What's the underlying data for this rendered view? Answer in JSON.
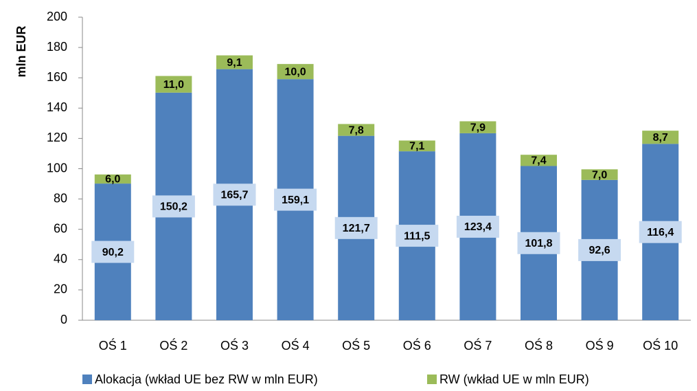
{
  "chart_data": {
    "type": "stacked_bar",
    "categories": [
      "OŚ 1",
      "OŚ 2",
      "OŚ 3",
      "OŚ 4",
      "OŚ 5",
      "OŚ 6",
      "OŚ 7",
      "OŚ 8",
      "OŚ 9",
      "OŚ 10"
    ],
    "series": [
      {
        "name": "Alokacja (wkład UE bez RW w mln EUR)",
        "color": "#4f81bd",
        "values": [
          90.2,
          150.2,
          165.7,
          159.1,
          121.7,
          111.5,
          123.4,
          101.8,
          92.6,
          116.4
        ],
        "value_labels": [
          "90,2",
          "150,2",
          "165,7",
          "159,1",
          "121,7",
          "111,5",
          "123,4",
          "101,8",
          "92,6",
          "116,4"
        ]
      },
      {
        "name": "RW (wkład UE w mln EUR)",
        "color": "#9bbb59",
        "values": [
          6.0,
          11.0,
          9.1,
          10.0,
          7.8,
          7.1,
          7.9,
          7.4,
          7.0,
          8.7
        ],
        "value_labels": [
          "6,0",
          "11,0",
          "9,1",
          "10,0",
          "7,8",
          "7,1",
          "7,9",
          "7,4",
          "7,0",
          "8,7"
        ]
      }
    ],
    "y_label": "mln EUR",
    "ylim": [
      0,
      200
    ],
    "yticks": [
      0,
      20,
      40,
      60,
      80,
      100,
      120,
      140,
      160,
      180,
      200
    ],
    "legend": "bottom"
  }
}
